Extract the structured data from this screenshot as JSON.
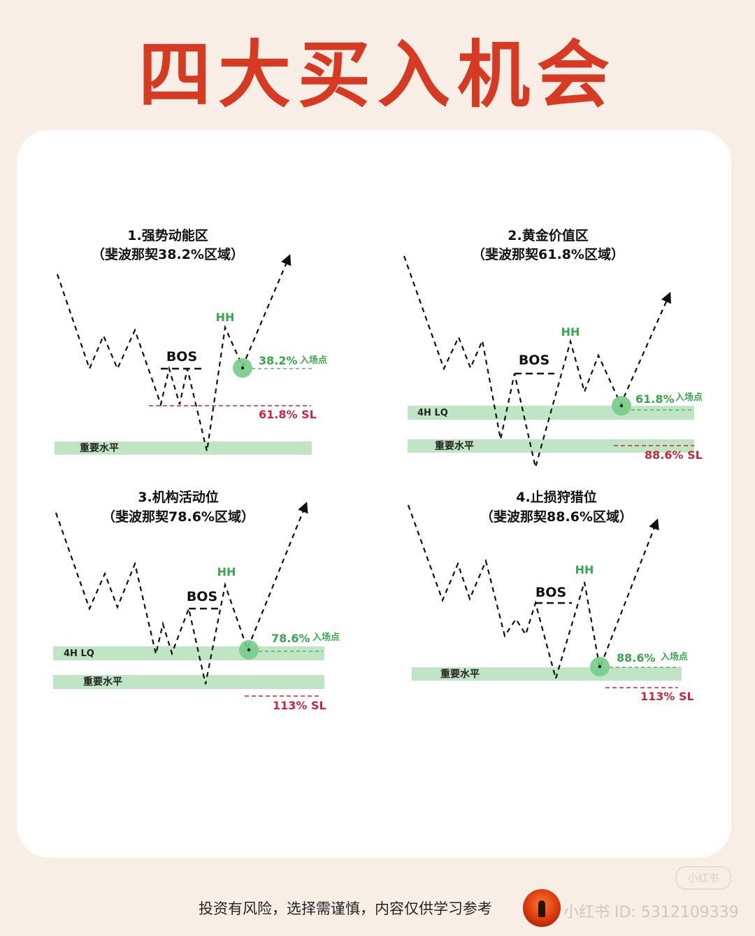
{
  "title": "四大买入机会",
  "panels": [
    {
      "title": "1.强势动能区",
      "subtitle": "（斐波那契38.2%区域）",
      "bos": "BOS",
      "hh": "HH",
      "entry_pct": "38.2%",
      "entry_label": "入场点",
      "sl": "61.8% SL",
      "level": "重要水平"
    },
    {
      "title": "2.黄金价值区",
      "subtitle": "（斐波那契61.8%区域）",
      "bos": "BOS",
      "hh": "HH",
      "entry_pct": "61.8%",
      "entry_label": "入场点",
      "sl": "88.6% SL",
      "lq": "4H LQ",
      "level": "重要水平"
    },
    {
      "title": "3.机构活动位",
      "subtitle": "（斐波那契78.6%区域）",
      "bos": "BOS",
      "hh": "HH",
      "entry_pct": "78.6%",
      "entry_label": "入场点",
      "sl": "113% SL",
      "lq": "4H LQ",
      "level": "重要水平"
    },
    {
      "title": "4.止损狩猎位",
      "subtitle": "（斐波那契88.6%区域）",
      "bos": "BOS",
      "hh": "HH",
      "entry_pct": "88.6%",
      "entry_label": "入场点",
      "sl": "113% SL",
      "level": "重要水平"
    }
  ],
  "footer": {
    "disclaimer": "投资有风险，选择需谨慎，内容仅供学习参考",
    "watermark": "小红书 ID: 5312109339",
    "badge": "小红书"
  },
  "colors": {
    "title": "#d63a22",
    "green_band": "#bfe5c4",
    "entry_green": "#3aa64e",
    "sl_red": "#c8283c",
    "hh_green": "#3aa64e"
  }
}
